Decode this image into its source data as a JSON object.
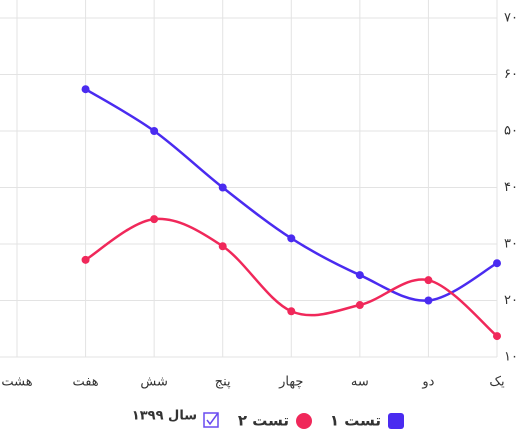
{
  "chart_data": {
    "type": "line",
    "categories": [
      "یک",
      "دو",
      "سه",
      "چهار",
      "پنج",
      "شش",
      "هفت",
      "هشت"
    ],
    "series": [
      {
        "name": "تست ۱",
        "color": "#4a2bf0",
        "values": [
          26.6,
          20,
          24.5,
          31,
          40,
          50,
          57.4,
          null
        ]
      },
      {
        "name": "تست ۲",
        "color": "#f0285a",
        "values": [
          13.7,
          23.6,
          19.2,
          18.1,
          29.6,
          34.4,
          27.2,
          null
        ]
      }
    ],
    "ylim": [
      10,
      70
    ],
    "yticks": [
      {
        "value": 10,
        "label": "۱۰"
      },
      {
        "value": 20,
        "label": "۲۰"
      },
      {
        "value": 30,
        "label": "۳۰"
      },
      {
        "value": 40,
        "label": "۴۰"
      },
      {
        "value": 50,
        "label": "۵۰"
      },
      {
        "value": 60,
        "label": "۶۰"
      },
      {
        "value": 70,
        "label": "۷۰"
      }
    ],
    "grid": true,
    "legend_extra": "سال ۱۳۹۹",
    "legend": "bottom"
  }
}
